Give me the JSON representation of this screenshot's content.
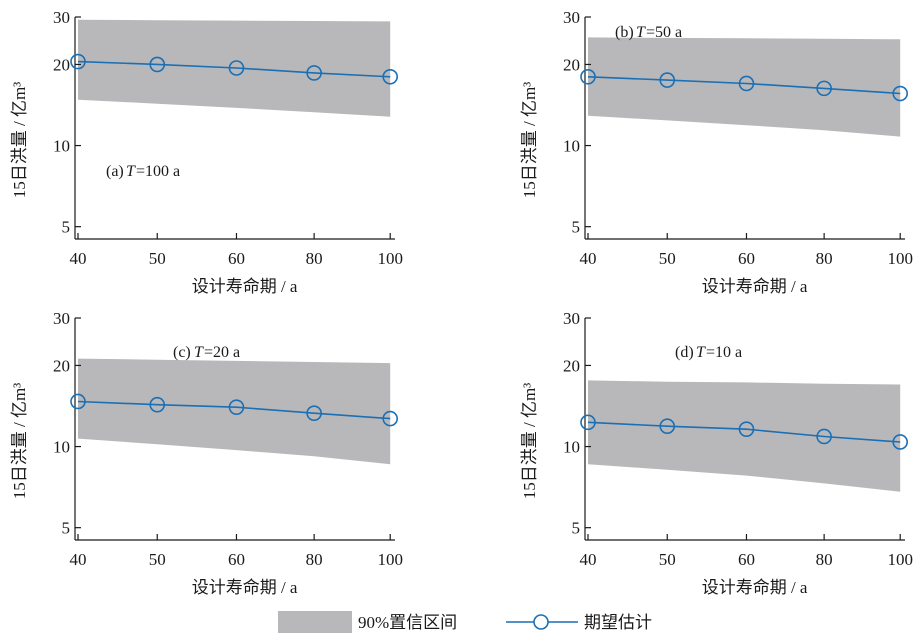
{
  "chart_data": [
    {
      "type": "line",
      "panel_label": "(a) ",
      "T_symbol": "T",
      "T_value": "=100 a",
      "categories": [
        "40",
        "50",
        "60",
        "80",
        "100"
      ],
      "series": [
        {
          "name": "期望估计",
          "values": [
            20.5,
            20.0,
            19.4,
            18.6,
            18.0
          ]
        },
        {
          "name": "90%置信区间",
          "lower": [
            14.8,
            14.3,
            13.8,
            13.3,
            12.8
          ],
          "upper": [
            29.3,
            29.2,
            29.1,
            29.0,
            28.9
          ]
        }
      ],
      "xlabel": "设计寿命期 / a",
      "ylabel": "15日洪量 / 亿m³",
      "yticks": [
        5,
        10,
        20,
        30
      ],
      "ylim": [
        4.5,
        30
      ],
      "yscale": "log"
    },
    {
      "type": "line",
      "panel_label": "(b) ",
      "T_symbol": "T",
      "T_value": "=50 a",
      "categories": [
        "40",
        "50",
        "60",
        "80",
        "100"
      ],
      "series": [
        {
          "name": "期望估计",
          "values": [
            18.0,
            17.5,
            17.0,
            16.3,
            15.6
          ]
        },
        {
          "name": "90%置信区间",
          "lower": [
            12.9,
            12.4,
            11.9,
            11.4,
            10.8
          ],
          "upper": [
            25.2,
            25.1,
            25.0,
            24.9,
            24.8
          ]
        }
      ],
      "xlabel": "设计寿命期 / a",
      "ylabel": "15日洪量 / 亿m³",
      "yticks": [
        5,
        10,
        20,
        30
      ],
      "ylim": [
        4.5,
        30
      ],
      "yscale": "log"
    },
    {
      "type": "line",
      "panel_label": "(c) ",
      "T_symbol": "T",
      "T_value": "=20 a",
      "categories": [
        "40",
        "50",
        "60",
        "80",
        "100"
      ],
      "series": [
        {
          "name": "期望估计",
          "values": [
            14.7,
            14.3,
            14.0,
            13.3,
            12.7
          ]
        },
        {
          "name": "90%置信区间",
          "lower": [
            10.7,
            10.2,
            9.7,
            9.2,
            8.6
          ],
          "upper": [
            21.2,
            21.0,
            20.8,
            20.6,
            20.4
          ]
        }
      ],
      "xlabel": "设计寿命期 / a",
      "ylabel": "15日洪量 / 亿m³",
      "yticks": [
        5,
        10,
        20,
        30
      ],
      "ylim": [
        4.5,
        30
      ],
      "yscale": "log"
    },
    {
      "type": "line",
      "panel_label": "(d) ",
      "T_symbol": "T",
      "T_value": "=10 a",
      "categories": [
        "40",
        "50",
        "60",
        "80",
        "100"
      ],
      "series": [
        {
          "name": "期望估计",
          "values": [
            12.3,
            11.9,
            11.6,
            10.9,
            10.4
          ]
        },
        {
          "name": "90%置信区间",
          "lower": [
            8.6,
            8.2,
            7.8,
            7.3,
            6.8
          ],
          "upper": [
            17.6,
            17.4,
            17.3,
            17.1,
            17.0
          ]
        }
      ],
      "xlabel": "设计寿命期 / a",
      "ylabel": "15日洪量 / 亿m³",
      "yticks": [
        5,
        10,
        20,
        30
      ],
      "ylim": [
        4.5,
        30
      ],
      "yscale": "log"
    }
  ],
  "legend": {
    "band_label": "90%置信区间",
    "line_label": "期望估计",
    "position": "bottom-center"
  },
  "colors": {
    "band": "#b8b8ba",
    "line": "#1a6fb5",
    "axis": "#1a1a1a"
  }
}
